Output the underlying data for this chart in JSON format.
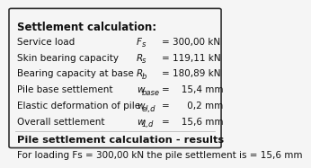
{
  "title": "Settlement calculation:",
  "rows": [
    {
      "label": "Service load",
      "symbol": "F",
      "sub": "s",
      "value": "= 300,00 kN"
    },
    {
      "label": "Skin bearing capacity",
      "symbol": "R",
      "sub": "s",
      "value": "= 119,11 kN"
    },
    {
      "label": "Bearing capacity at base",
      "symbol": "R",
      "sub": "b",
      "value": "= 180,89 kN"
    },
    {
      "label": "Pile base settlement",
      "symbol": "w",
      "sub": "base",
      "value": "=    15,4 mm"
    },
    {
      "label": "Elastic deformation of pile",
      "symbol": "w",
      "sub": "el,d",
      "value": "=      0,2 mm"
    },
    {
      "label": "Overall settlement",
      "symbol": "w",
      "sub": "1,d",
      "value": "=    15,6 mm"
    }
  ],
  "section2_title": "Pile settlement calculation - results",
  "section2_body": "For loading Fs = 300,00 kN the pile settlement is = 15,6 mm",
  "bg_color": "#f5f5f5",
  "border_color": "#333333",
  "text_color": "#111111",
  "title_fontsize": 8.5,
  "body_fontsize": 7.5
}
